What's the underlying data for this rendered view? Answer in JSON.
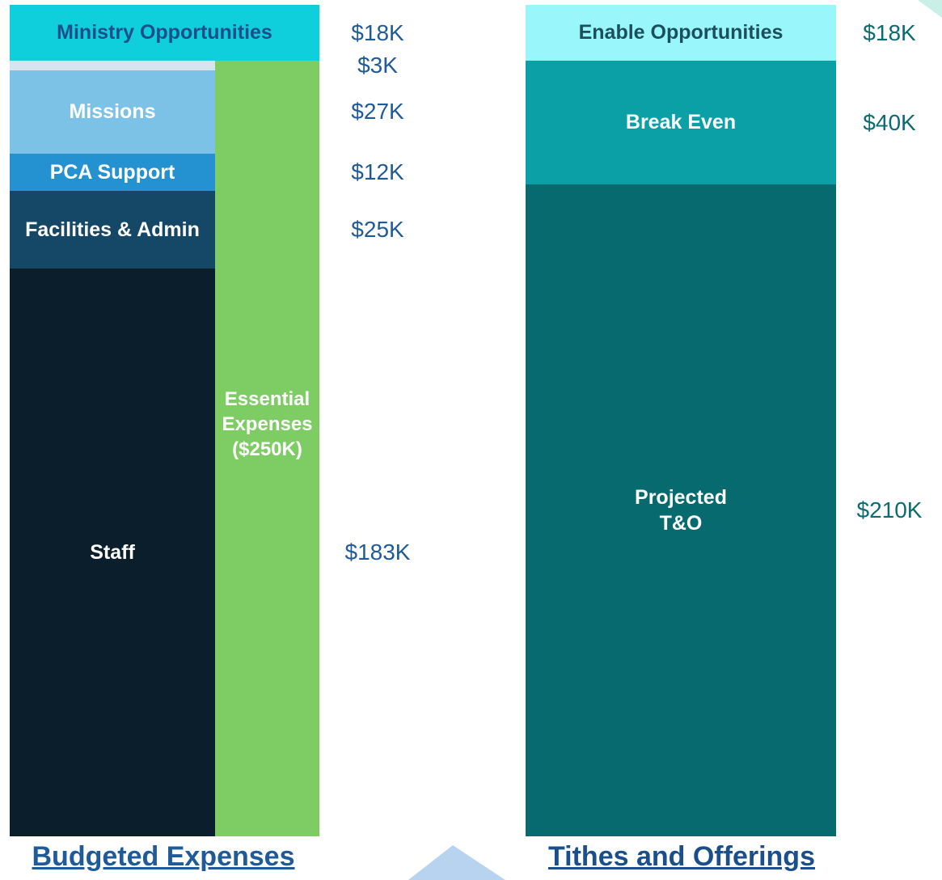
{
  "chart_data": [
    {
      "type": "stacked_bar",
      "title": "Budgeted Expenses",
      "categories": [
        "Staff",
        "Facilities & Admin",
        "PCA Support",
        "Missions",
        null,
        "Ministry Opportunities"
      ],
      "values": [
        183000,
        25000,
        12000,
        27000,
        3000,
        18000
      ],
      "value_labels": [
        "$183K",
        "$25K",
        "$12K",
        "$27K",
        "$3K",
        "$18K"
      ],
      "colors": [
        "#0a1e2b",
        "#154766",
        "#2492d0",
        "#7cc1e6",
        "#d6e4ee",
        "#0fcfdc"
      ],
      "label_colors": [
        "#ffffff",
        "#ffffff",
        "#ffffff",
        "#ffffff",
        "#ffffff",
        "#1b4f8c"
      ],
      "value_label_color": "#1f5a99",
      "annotation": {
        "text": "Essential\nExpenses\n($250K)",
        "value": 250000,
        "color": "#7ecd64"
      }
    },
    {
      "type": "stacked_bar",
      "title": "Tithes and Offerings",
      "categories": [
        "Projected\nT&O",
        "Break Even",
        "Enable Opportunities"
      ],
      "values": [
        210000,
        40000,
        18000
      ],
      "value_labels": [
        "$210K",
        "$40K",
        "$18K"
      ],
      "colors": [
        "#076a6f",
        "#0aa0a6",
        "#99f6fb"
      ],
      "label_colors": [
        "#ffffff",
        "#ffffff",
        "#1b4f5c"
      ],
      "value_label_color": "#0b6b70"
    }
  ]
}
